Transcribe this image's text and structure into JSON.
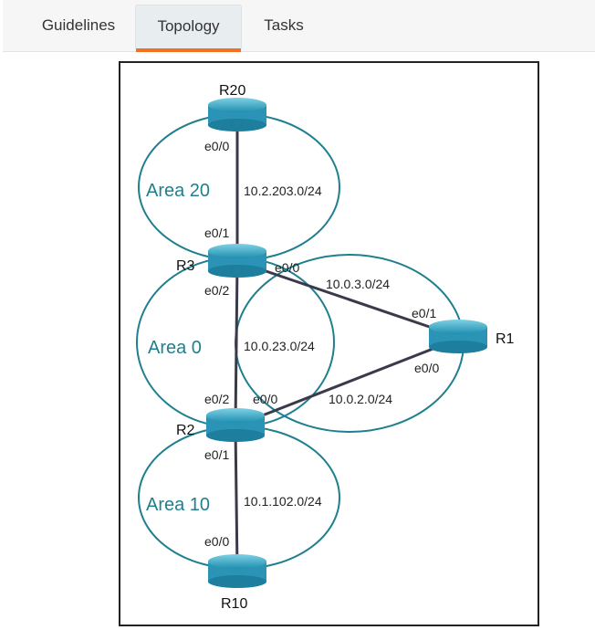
{
  "tabs": [
    {
      "label": "Guidelines"
    },
    {
      "label": "Topology",
      "active": true
    },
    {
      "label": "Tasks"
    }
  ],
  "colors": {
    "accent": "#f36f21",
    "area": "#1f7f8f",
    "router": "#3aa6c4"
  },
  "topology": {
    "routers": [
      "R20",
      "R3",
      "R2",
      "R10",
      "R1"
    ],
    "areas": [
      "Area 20",
      "Area 0",
      "Area 10"
    ],
    "links": [
      {
        "a_if": "e0/0",
        "b_if": "e0/1",
        "subnet": "10.2.203.0/24"
      },
      {
        "a_if": "e0/2",
        "b_if": "e0/2",
        "subnet": "10.0.23.0/24"
      },
      {
        "a_if": "e0/1",
        "b_if": "e0/0",
        "subnet": "10.1.102.0/24"
      },
      {
        "a_if": "e0/0",
        "b_if": "e0/1",
        "subnet": "10.0.3.0/24"
      },
      {
        "a_if": "e0/0",
        "b_if": "e0/0",
        "subnet": "10.0.2.0/24"
      }
    ]
  }
}
